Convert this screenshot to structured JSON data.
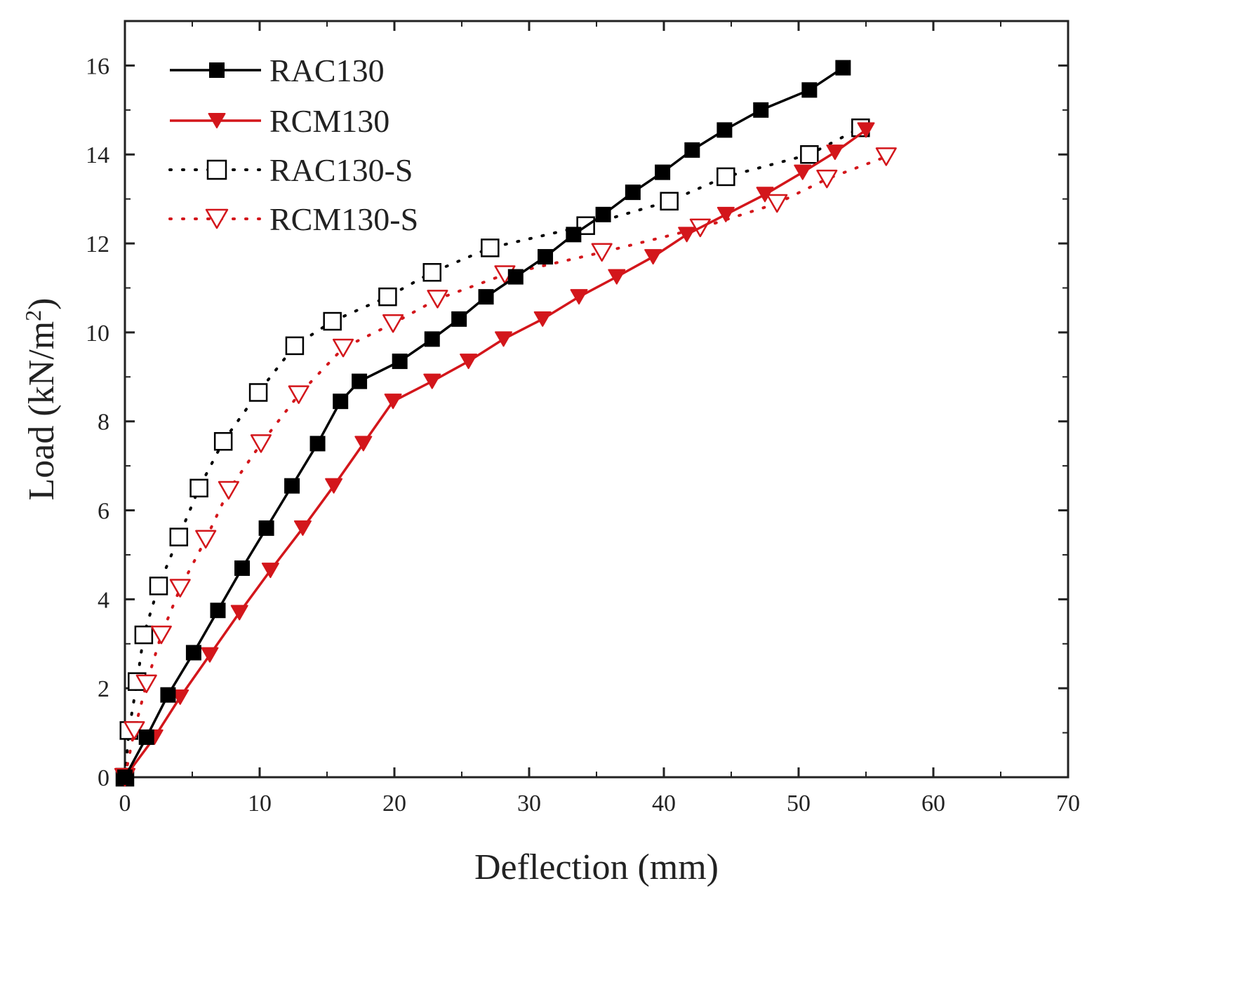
{
  "chart_data": {
    "type": "line",
    "title": "",
    "xlabel": "Deflection (mm)",
    "ylabel_main": "Load (kN/m",
    "ylabel_sup": "2",
    "ylabel_close": ")",
    "xlim": [
      0,
      70
    ],
    "ylim": [
      0,
      17
    ],
    "xticks": [
      0,
      10,
      20,
      30,
      40,
      50,
      60,
      70
    ],
    "yticks": [
      0,
      2,
      4,
      6,
      8,
      10,
      12,
      14,
      16
    ],
    "xtick_labels": [
      "0",
      "10",
      "20",
      "30",
      "40",
      "50",
      "60",
      "70"
    ],
    "ytick_labels": [
      "0",
      "2",
      "4",
      "6",
      "8",
      "10",
      "12",
      "14",
      "16"
    ],
    "grid": false,
    "legend_position": "top-left",
    "series": [
      {
        "name": "RAC130",
        "color": "#000000",
        "line_style": "solid",
        "marker": "square",
        "marker_fill": "filled",
        "x": [
          0,
          1.6,
          3.2,
          5.1,
          6.9,
          8.7,
          10.5,
          12.4,
          14.3,
          16.0,
          17.4,
          20.4,
          22.8,
          24.8,
          26.8,
          29.0,
          31.2,
          33.3,
          35.5,
          37.7,
          39.9,
          42.1,
          44.5,
          47.2,
          50.8,
          53.3
        ],
        "y": [
          0,
          0.9,
          1.85,
          2.8,
          3.75,
          4.7,
          5.6,
          6.55,
          7.5,
          8.45,
          8.9,
          9.35,
          9.85,
          10.3,
          10.8,
          11.25,
          11.7,
          12.2,
          12.65,
          13.15,
          13.6,
          14.1,
          14.55,
          15.0,
          15.45,
          15.95
        ]
      },
      {
        "name": "RCM130",
        "color": "#d3161b",
        "line_style": "solid",
        "marker": "triangle-down",
        "marker_fill": "filled",
        "x": [
          0,
          2.2,
          4.1,
          6.3,
          8.5,
          10.8,
          13.2,
          15.5,
          17.7,
          19.9,
          22.8,
          25.5,
          28.1,
          31.0,
          33.7,
          36.5,
          39.2,
          41.7,
          44.6,
          47.5,
          50.3,
          52.7,
          55.0
        ],
        "y": [
          0,
          0.9,
          1.8,
          2.75,
          3.7,
          4.65,
          5.6,
          6.55,
          7.5,
          8.45,
          8.9,
          9.35,
          9.85,
          10.3,
          10.8,
          11.25,
          11.7,
          12.2,
          12.65,
          13.1,
          13.6,
          14.05,
          14.55
        ]
      },
      {
        "name": "RAC130-S",
        "color": "#000000",
        "line_style": "dotted",
        "marker": "square",
        "marker_fill": "hollow",
        "x": [
          0,
          0.3,
          0.9,
          1.4,
          2.5,
          4.0,
          5.5,
          7.3,
          9.9,
          12.6,
          15.4,
          19.5,
          22.8,
          27.1,
          34.2,
          40.4,
          44.6,
          50.8,
          54.6
        ],
        "y": [
          0,
          1.05,
          2.15,
          3.2,
          4.3,
          5.4,
          6.5,
          7.55,
          8.65,
          9.7,
          10.25,
          10.8,
          11.35,
          11.9,
          12.4,
          12.95,
          13.5,
          14.0,
          14.6
        ]
      },
      {
        "name": "RCM130-S",
        "color": "#d3161b",
        "line_style": "dotted",
        "marker": "triangle-down",
        "marker_fill": "hollow",
        "x": [
          0,
          0.7,
          1.6,
          2.7,
          4.1,
          6.0,
          7.7,
          10.1,
          12.9,
          16.2,
          19.9,
          23.2,
          28.2,
          35.4,
          42.7,
          48.4,
          52.1,
          56.5
        ],
        "y": [
          0,
          1.05,
          2.1,
          3.2,
          4.25,
          5.35,
          6.45,
          7.5,
          8.6,
          9.65,
          10.2,
          10.75,
          11.3,
          11.8,
          12.35,
          12.9,
          13.45,
          13.95
        ]
      }
    ]
  }
}
